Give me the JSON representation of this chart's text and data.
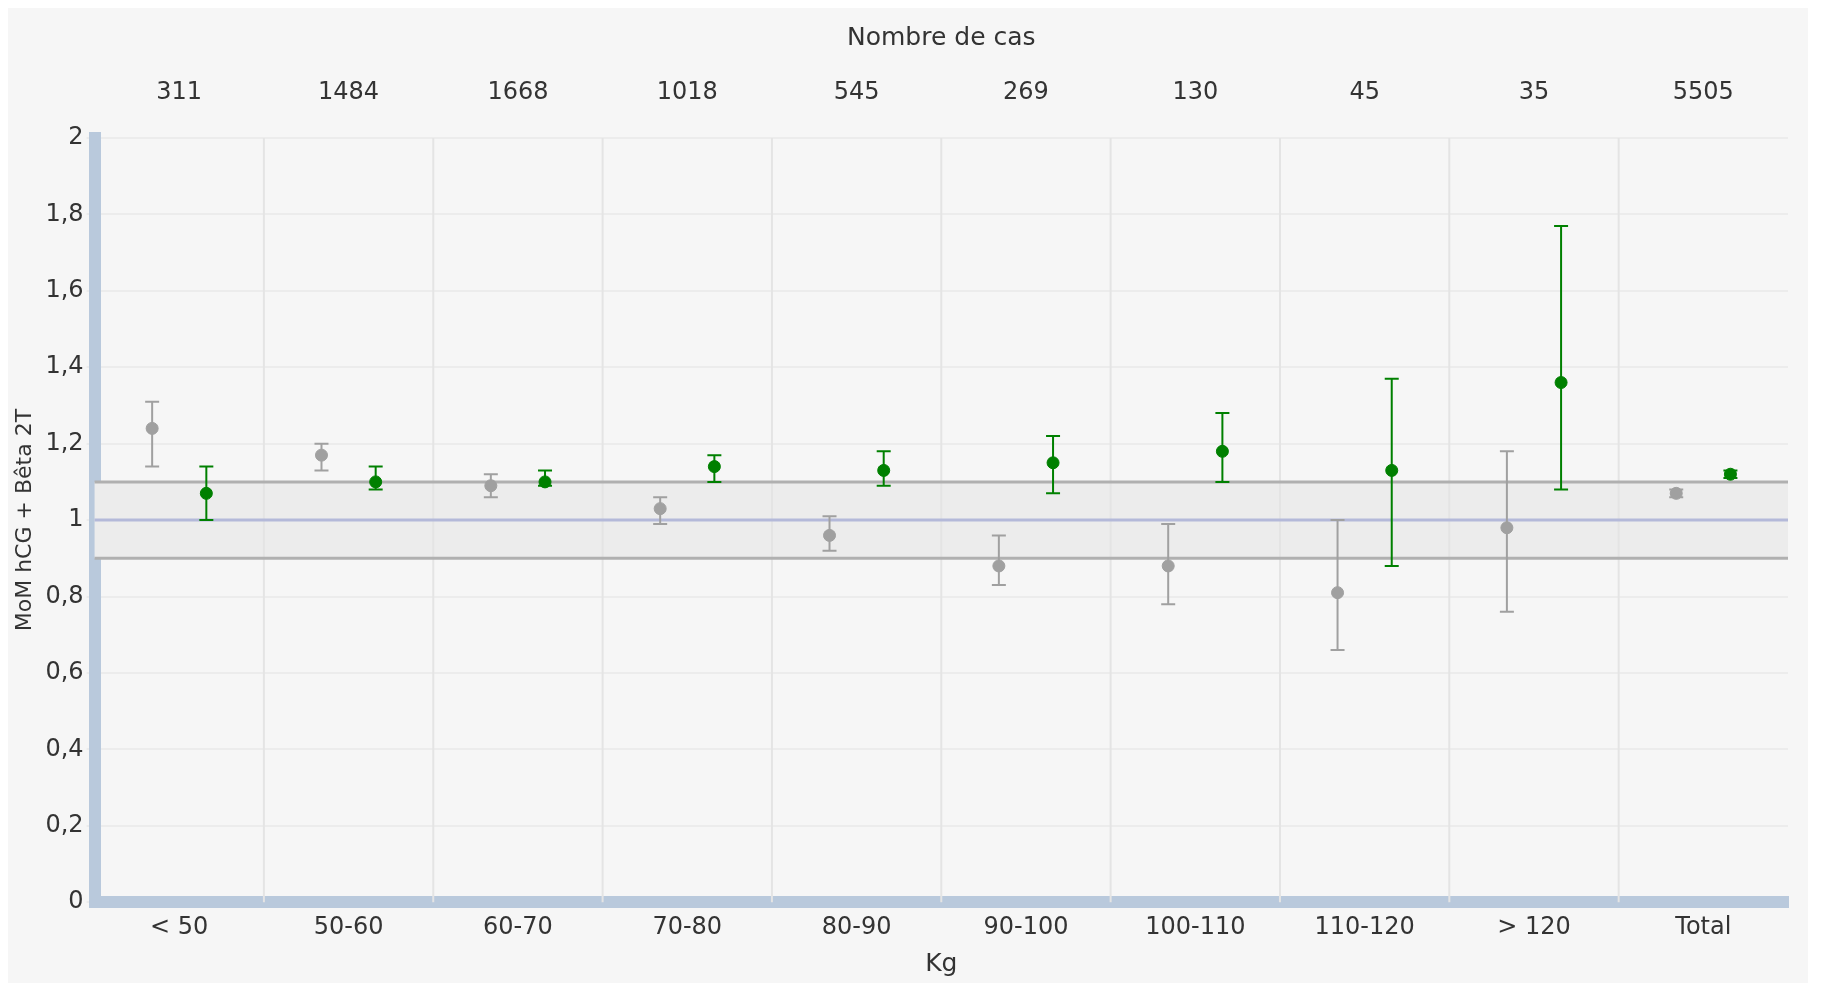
{
  "chart_data": {
    "type": "scatter",
    "xlabel": "Kg",
    "ylabel": "MoM hCG + Bêta 2T",
    "x2label": "Nombre de cas",
    "categories": [
      "< 50",
      "50-60",
      "60-70",
      "70-80",
      "80-90",
      "90-100",
      "100-110",
      "110-120",
      "> 120",
      "Total"
    ],
    "series": [
      {
        "color": "#a0a0a0",
        "values": [
          1.24,
          1.17,
          1.09,
          1.03,
          0.96,
          0.88,
          0.88,
          0.81,
          0.98,
          1.07
        ],
        "errors": [
          [
            1.14,
            1.31
          ],
          [
            1.13,
            1.2
          ],
          [
            1.06,
            1.12
          ],
          [
            0.99,
            1.06
          ],
          [
            0.92,
            1.01
          ],
          [
            0.83,
            0.96
          ],
          [
            0.78,
            0.99
          ],
          [
            0.66,
            1.0
          ],
          [
            0.76,
            1.18
          ],
          [
            1.06,
            1.08
          ]
        ]
      },
      {
        "color": "#008000",
        "values": [
          1.07,
          1.1,
          1.1,
          1.14,
          1.13,
          1.15,
          1.18,
          1.13,
          1.36,
          1.12
        ],
        "errors": [
          [
            1.0,
            1.14
          ],
          [
            1.08,
            1.14
          ],
          [
            1.09,
            1.13
          ],
          [
            1.1,
            1.17
          ],
          [
            1.09,
            1.18
          ],
          [
            1.07,
            1.22
          ],
          [
            1.1,
            1.28
          ],
          [
            0.88,
            1.37
          ],
          [
            1.08,
            1.77
          ],
          [
            1.11,
            1.13
          ]
        ]
      }
    ],
    "ylim": [
      0,
      2
    ],
    "yticks": [
      0,
      {
        "value": 0.2,
        "label": "0,2"
      },
      {
        "value": 0.4,
        "label": "0,4"
      },
      {
        "value": 0.6,
        "label": "0,6"
      },
      {
        "value": 0.8,
        "label": "0,8"
      },
      1,
      {
        "value": 1.2,
        "label": "1,2"
      },
      {
        "value": 1.4,
        "label": "1,4"
      },
      {
        "value": 1.6,
        "label": "1,6"
      },
      {
        "value": 1.8,
        "label": "1,8"
      },
      2
    ],
    "ref_lines": [
      {
        "axis": "y",
        "value": 1,
        "color": "#b4b9d9"
      },
      {
        "axis": "y",
        "value": 0.9,
        "color": "#b0b0b0"
      },
      {
        "axis": "y",
        "value": 1.1,
        "color": "#b0b0b0"
      }
    ],
    "bands": [
      {
        "axis": "y",
        "from": 0.9,
        "to": 1.1,
        "color": "#ececec"
      }
    ],
    "annotations": [
      "311",
      "1484",
      "1668",
      "1018",
      "545",
      "269",
      "130",
      "45",
      "35",
      "5505"
    ],
    "grid": true,
    "marker": "circle",
    "legend": false
  }
}
